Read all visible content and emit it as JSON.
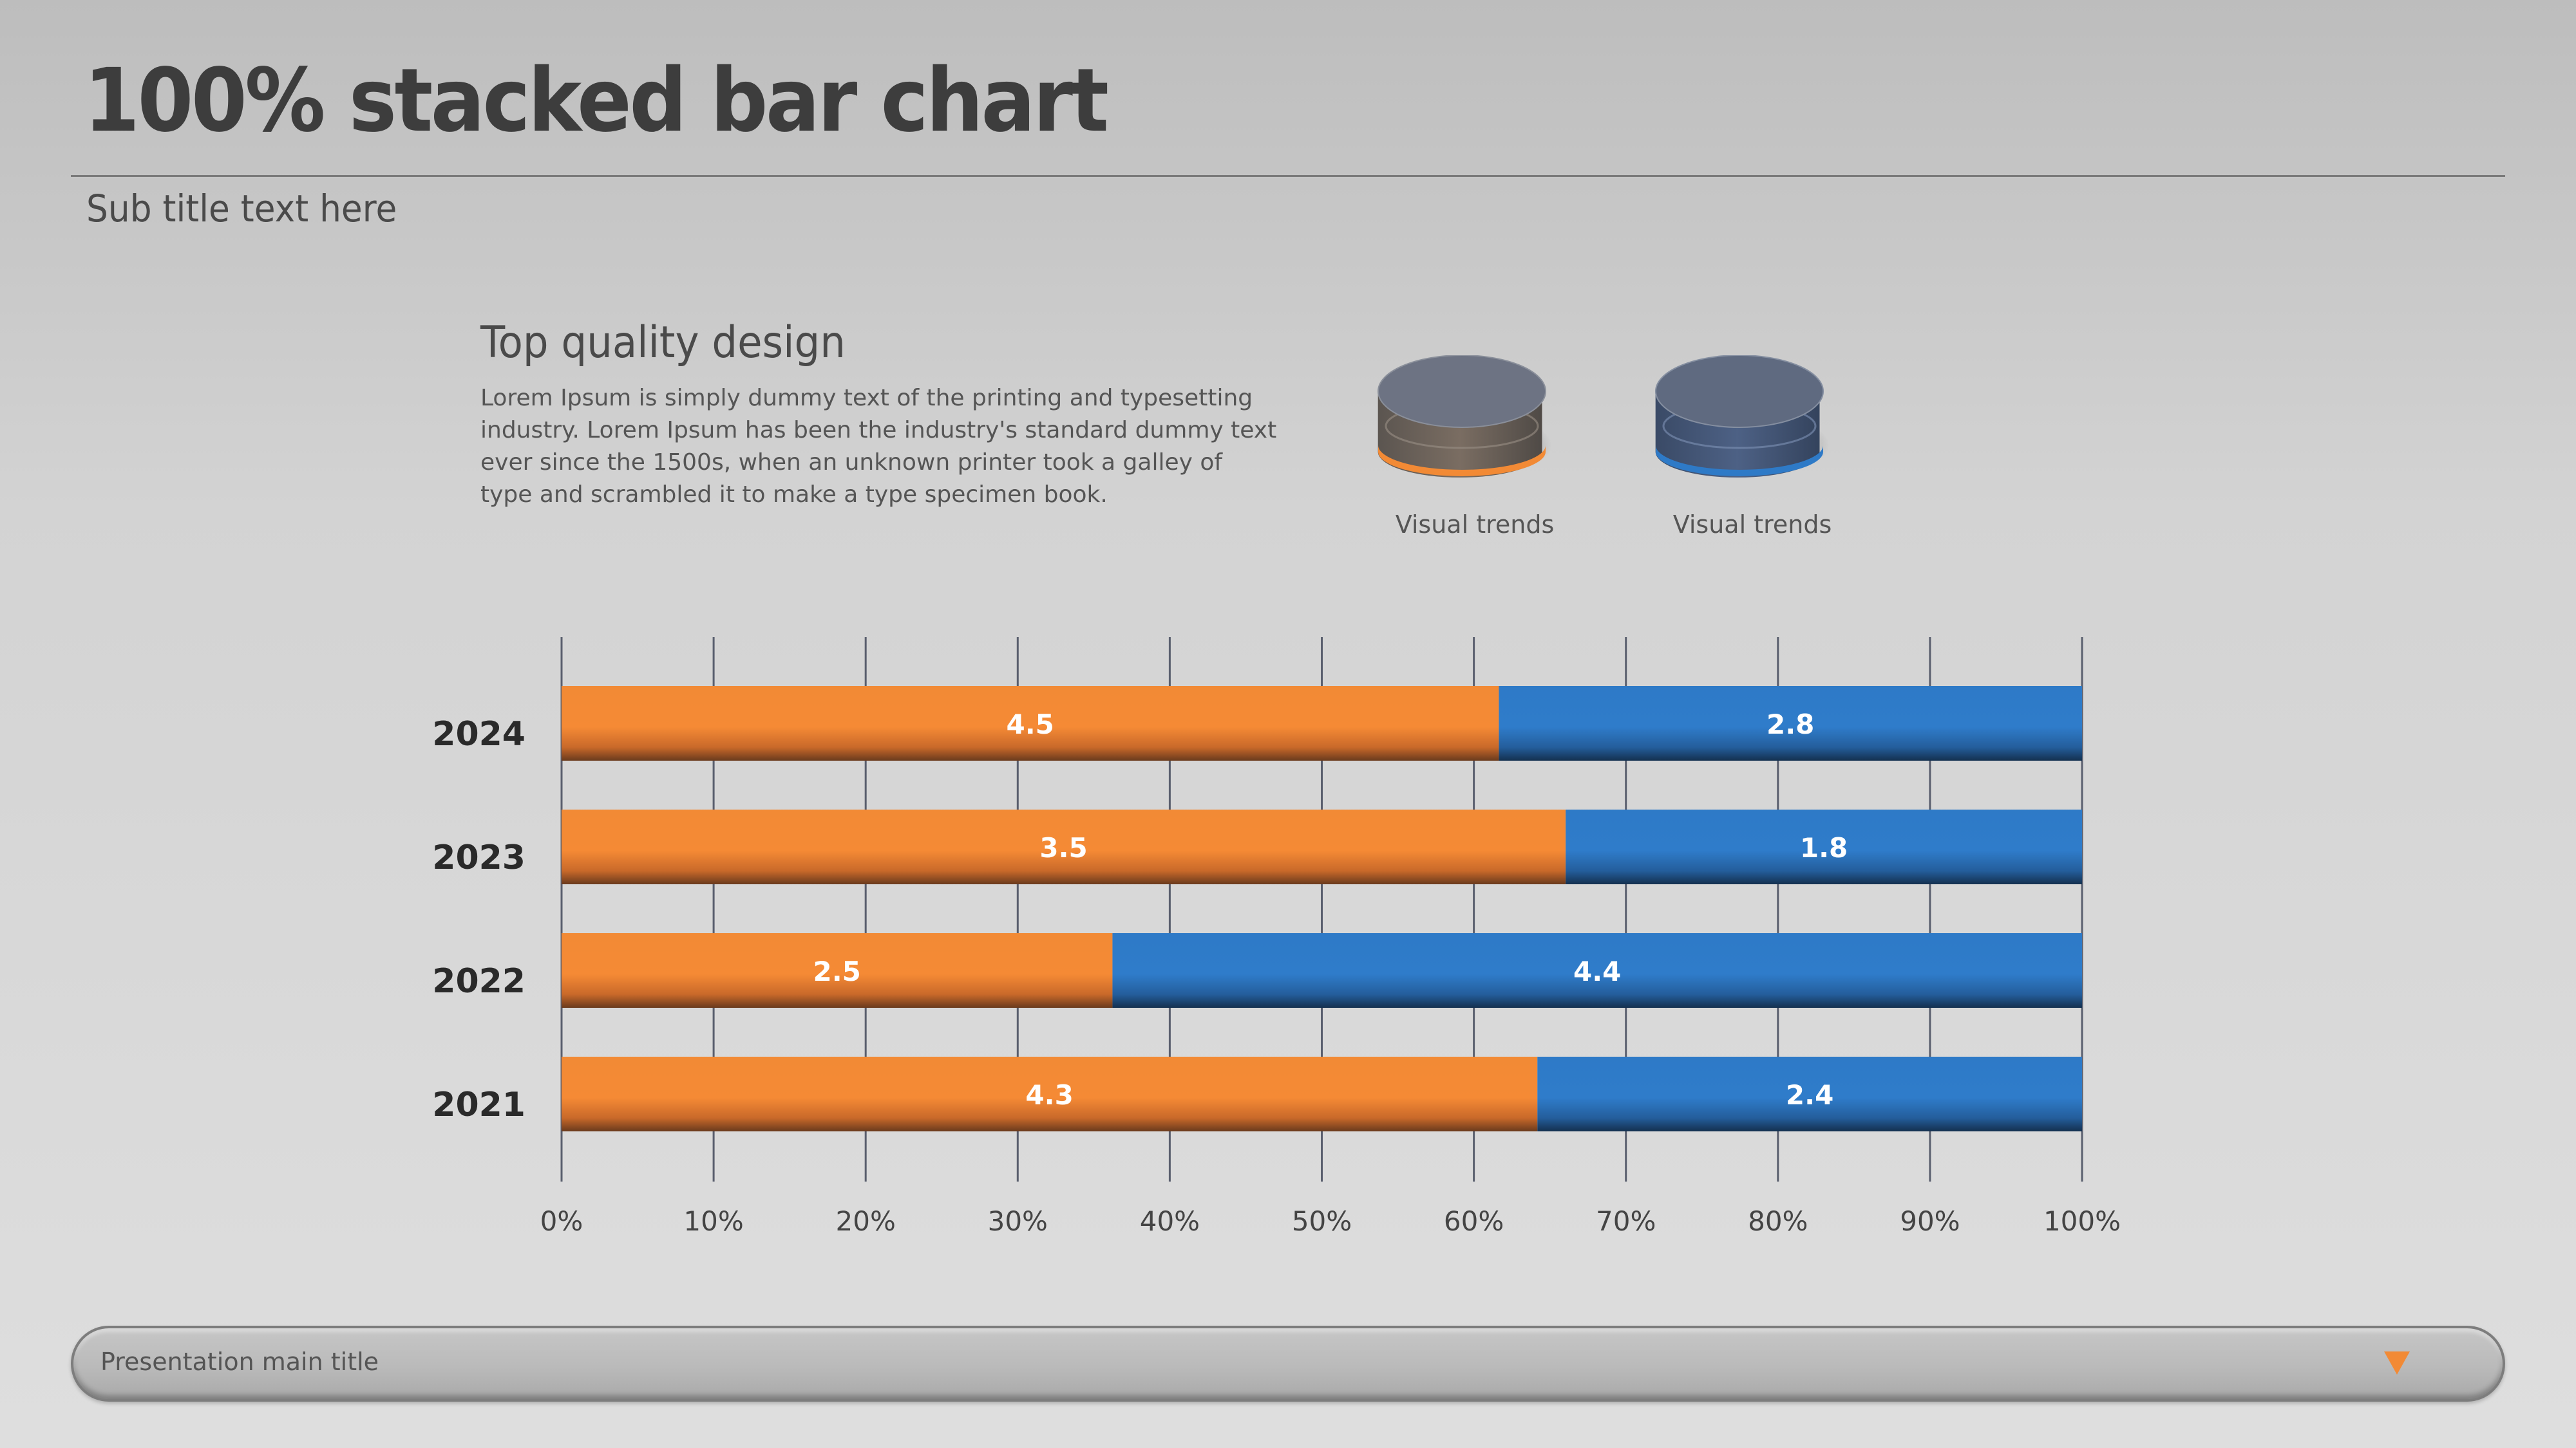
{
  "header": {
    "title": "100% stacked bar chart",
    "subtitle": "Sub title text here"
  },
  "section": {
    "heading": "Top quality design",
    "body": "Lorem Ipsum is simply dummy text of the printing and typesetting industry. Lorem Ipsum has been the industry's standard dummy text ever since the 1500s, when an unknown printer took a galley of type and scrambled it to make a type specimen book."
  },
  "legend": [
    {
      "label": "Visual trends",
      "color": "#F28A35",
      "icon": "cylinder-icon"
    },
    {
      "label": "Visual trends",
      "color": "#2E7AC7",
      "icon": "cylinder-icon"
    }
  ],
  "footer": {
    "text": "Presentation main title",
    "icon": "triangle-down-icon",
    "icon_color": "#F28A35"
  },
  "chart_data": {
    "type": "bar",
    "orientation": "horizontal",
    "stacking": "percent",
    "categories": [
      "2024",
      "2023",
      "2022",
      "2021"
    ],
    "series": [
      {
        "name": "Visual trends",
        "color": "#F28A35",
        "values": [
          4.5,
          3.5,
          2.5,
          4.3
        ]
      },
      {
        "name": "Visual trends",
        "color": "#2E7AC7",
        "values": [
          2.8,
          1.8,
          4.4,
          2.4
        ]
      }
    ],
    "x_ticks": [
      "0%",
      "10%",
      "20%",
      "30%",
      "40%",
      "50%",
      "60%",
      "70%",
      "80%",
      "90%",
      "100%"
    ],
    "xlim": [
      0,
      100
    ],
    "grid": true,
    "data_labels": true
  }
}
